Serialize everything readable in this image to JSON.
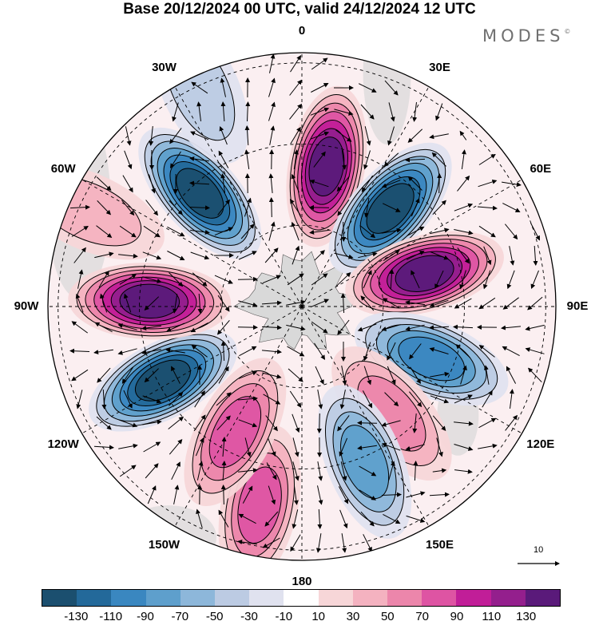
{
  "header": {
    "title": "Base 20/12/2024 00 UTC, valid 24/12/2024 12 UTC",
    "brand": "MODES",
    "brand_mark": "©"
  },
  "map": {
    "projection": "south-polar-stereographic",
    "longitude_labels": [
      "0",
      "30E",
      "60E",
      "90E",
      "120E",
      "150E",
      "180",
      "150W",
      "120W",
      "90W",
      "60W",
      "30W"
    ],
    "meridian_label_longitudes": [
      0,
      30,
      60,
      90,
      120,
      150,
      180,
      -150,
      -120,
      -90,
      -60,
      -30
    ],
    "anomaly_centers": [
      {
        "lon": 10,
        "colat": 0.56,
        "value": 130
      },
      {
        "lon": 42,
        "colat": 0.52,
        "value": -130
      },
      {
        "lon": 75,
        "colat": 0.5,
        "value": 130
      },
      {
        "lon": 112,
        "colat": 0.55,
        "value": -90
      },
      {
        "lon": 140,
        "colat": 0.55,
        "value": 50
      },
      {
        "lon": 158,
        "colat": 0.66,
        "value": -70
      },
      {
        "lon": -168,
        "colat": 0.8,
        "value": 70
      },
      {
        "lon": -152,
        "colat": 0.56,
        "value": 70
      },
      {
        "lon": -118,
        "colat": 0.62,
        "value": -130
      },
      {
        "lon": -88,
        "colat": 0.6,
        "value": 130
      },
      {
        "lon": -42,
        "colat": 0.6,
        "value": -130
      },
      {
        "lon": -66,
        "colat": 0.92,
        "value": 30
      },
      {
        "lon": -25,
        "colat": 0.95,
        "value": -30
      }
    ],
    "land_color": "#d9d9d9"
  },
  "wind_scale": {
    "label": "10"
  },
  "colorbar": {
    "colors": [
      "#1b4f6f",
      "#23699a",
      "#3a87c0",
      "#5e9fcc",
      "#8db7da",
      "#bccbe3",
      "#e0e2ef",
      "#ffffff",
      "#f7d6d8",
      "#f4b2c0",
      "#ec86ab",
      "#de54a3",
      "#c11e98",
      "#941f8d",
      "#5a1a7a"
    ],
    "tick_labels": [
      "-130",
      "-110",
      "-90",
      "-70",
      "-50",
      "-30",
      "-10",
      "10",
      "30",
      "50",
      "70",
      "90",
      "110",
      "130"
    ]
  }
}
